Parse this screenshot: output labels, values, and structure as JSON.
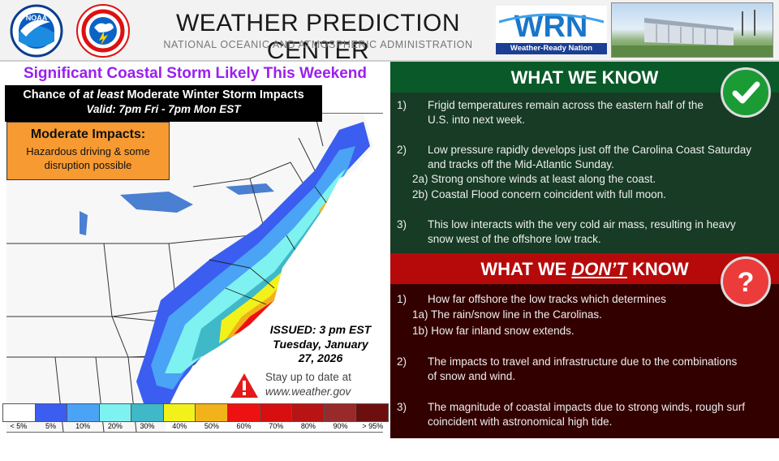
{
  "header": {
    "noaa_text": "NOAA",
    "title": "WEATHER PREDICTION CENTER",
    "subtitle": "NATIONAL OCEANIC AND ATMOSPHERIC ADMINISTRATION",
    "wrn_logo_text": "WRN",
    "wrn_caption": "Weather-Ready Nation"
  },
  "map_panel": {
    "title": "Significant Coastal Storm Likely This Weekend",
    "chance_line_pre": "Chance of ",
    "chance_line_em": "at least",
    "chance_line_post": " Moderate Winter Storm Impacts",
    "valid": "Valid: 7pm Fri - 7pm Mon EST",
    "impact_title": "Moderate Impacts:",
    "impact_desc": "Hazardous driving & some disruption possible",
    "issued": "ISSUED: 3 pm EST",
    "issued_date": "Tuesday, January 27, 2026",
    "stay_line": "Stay up to date at",
    "website": "www.weather.gov"
  },
  "legend": {
    "items": [
      {
        "label": "< 5%",
        "color": "#ffffff"
      },
      {
        "label": "5%",
        "color": "#3b5df0"
      },
      {
        "label": "10%",
        "color": "#4aa3f5"
      },
      {
        "label": "20%",
        "color": "#7ef2f0"
      },
      {
        "label": "30%",
        "color": "#3fb8c8"
      },
      {
        "label": "40%",
        "color": "#f2f21a"
      },
      {
        "label": "50%",
        "color": "#f2b21a"
      },
      {
        "label": "60%",
        "color": "#ee1111"
      },
      {
        "label": "70%",
        "color": "#d80f0f"
      },
      {
        "label": "80%",
        "color": "#b81414"
      },
      {
        "label": "90%",
        "color": "#992a2a"
      },
      {
        "label": "> 95%",
        "color": "#6e0f0f"
      }
    ]
  },
  "know": {
    "heading": "WHAT WE KNOW",
    "items": [
      {
        "num": "1)",
        "text": "Frigid temperatures remain across the eastern half of the U.S. into next week."
      },
      {
        "num": "2)",
        "text": "Low pressure rapidly develops just off the Carolina Coast Saturday and tracks off the Mid-Atlantic Sunday."
      },
      {
        "num": "3)",
        "text": "This low interacts with the very cold air mass, resulting in heavy snow west of the offshore low track."
      }
    ],
    "subitems": [
      "2a) Strong onshore winds at least along the coast.",
      "2b) Coastal Flood concern coincident with full moon."
    ]
  },
  "dont_know": {
    "heading_pre": "WHAT WE ",
    "heading_em": "DON’T",
    "heading_post": " KNOW",
    "items": [
      {
        "num": "1)",
        "text": "How far offshore the low tracks which determines"
      },
      {
        "num": "2)",
        "text": "The impacts to travel and infrastructure due to the combinations of snow and wind."
      },
      {
        "num": "3)",
        "text": "The magnitude of coastal impacts due to strong winds, rough surf coincident with astronomical high tide."
      }
    ],
    "subitems": [
      "1a) The rain/snow line in the Carolinas.",
      "1b) How far inland snow extends."
    ]
  },
  "colors": {
    "know_bg": "#173b24",
    "know_header": "#0a5a29",
    "dont_bg": "#330000",
    "dont_header": "#b60a0a",
    "title_purple": "#9b1ff0",
    "impact_orange": "#f79a32"
  }
}
